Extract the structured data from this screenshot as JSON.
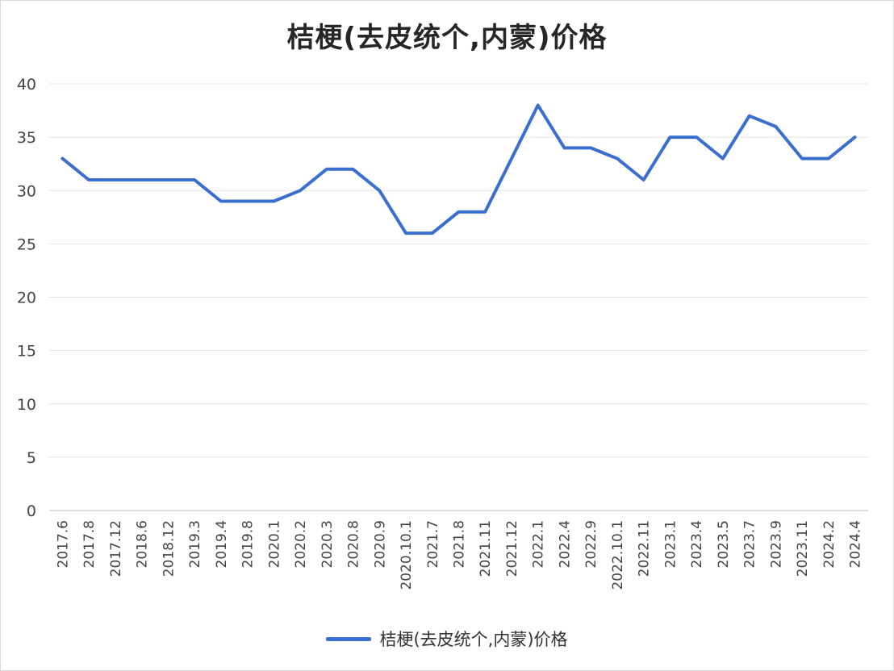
{
  "chart_data": {
    "type": "line",
    "title": "桔梗(去皮统个,内蒙)价格",
    "xlabel": "",
    "ylabel": "",
    "ylim": [
      0,
      40
    ],
    "yticks": [
      0,
      5,
      10,
      15,
      20,
      25,
      30,
      35,
      40
    ],
    "grid": true,
    "legend": "bottom",
    "categories": [
      "2017.6",
      "2017.8",
      "2017.12",
      "2018.6",
      "2018.12",
      "2019.3",
      "2019.4",
      "2019.8",
      "2020.1",
      "2020.2",
      "2020.3",
      "2020.8",
      "2020.9",
      "2020.10.1",
      "2021.7",
      "2021.8",
      "2021.11",
      "2021.12",
      "2022.1",
      "2022.4",
      "2022.9",
      "2022.10.1",
      "2022.11",
      "2023.1",
      "2023.4",
      "2023.5",
      "2023.7",
      "2023.9",
      "2023.11",
      "2024.2",
      "2024.4"
    ],
    "series": [
      {
        "name": "桔梗(去皮统个,内蒙)价格",
        "color": "#3a6fd0",
        "values": [
          33,
          31,
          31,
          31,
          31,
          31,
          29,
          29,
          29,
          30,
          32,
          32,
          30,
          26,
          26,
          28,
          28,
          33,
          38,
          34,
          34,
          33,
          31,
          35,
          35,
          33,
          37,
          36,
          33,
          33,
          35
        ]
      }
    ]
  },
  "colors": {
    "grid": "#e3e3e3",
    "axis": "#bfbfbf",
    "tick_text": "#444444"
  }
}
